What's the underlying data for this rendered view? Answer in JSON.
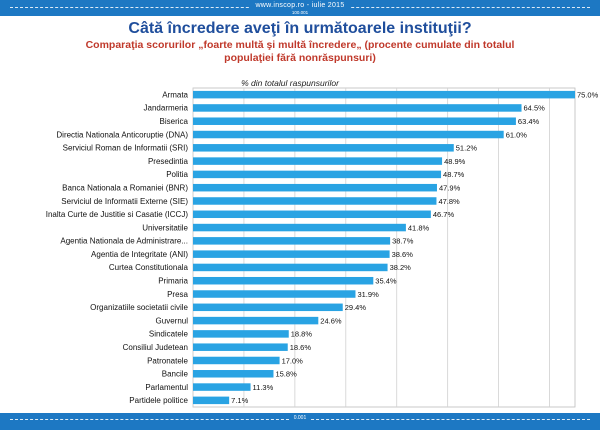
{
  "header": {
    "site": "www.inscop.ro   -   iulie 2015",
    "page_marker": "100.001"
  },
  "title": "Câtă încredere aveţi în următoarele instituţii?",
  "subtitle": "Comparaţia scorurilor „foarte multă şi multă încredere„ (procente cumulate din totalul populaţiei fără nonrăspunsuri)",
  "footer": {
    "page_marker": "0.001"
  },
  "colors": {
    "bar": "#29a3e3",
    "grid": "#d0d0d0",
    "header": "#1d78c3",
    "title": "#1f4e9c",
    "subtitle": "#c0392b"
  },
  "chart_data": {
    "type": "bar",
    "orientation": "horizontal",
    "xlabel": "% din totalul raspunsurilor",
    "xlim": [
      0,
      75
    ],
    "grid": true,
    "value_suffix": "%",
    "categories": [
      "Armata",
      "Jandarmeria",
      "Biserica",
      "Directia Nationala Anticoruptie (DNA)",
      "Serviciul Roman de Informatii (SRI)",
      "Presedintia",
      "Politia",
      "Banca Nationala a Romaniei (BNR)",
      "Serviciul de Informatii Externe (SIE)",
      "Inalta Curte de Justitie si Casatie (ICCJ)",
      "Universitatile",
      "Agentia Nationala de Administrare...",
      "Agentia de Integritate (ANI)",
      "Curtea Constitutionala",
      "Primaria",
      "Presa",
      "Organizatiile societatii civile",
      "Guvernul",
      "Sindicatele",
      "Consiliul Judetean",
      "Patronatele",
      "Bancile",
      "Parlamentul",
      "Partidele politice"
    ],
    "values": [
      75.0,
      64.5,
      63.4,
      61.0,
      51.2,
      48.9,
      48.7,
      47.9,
      47.8,
      46.7,
      41.8,
      38.7,
      38.6,
      38.2,
      35.4,
      31.9,
      29.4,
      24.6,
      18.8,
      18.6,
      17.0,
      15.8,
      11.3,
      7.1
    ]
  }
}
